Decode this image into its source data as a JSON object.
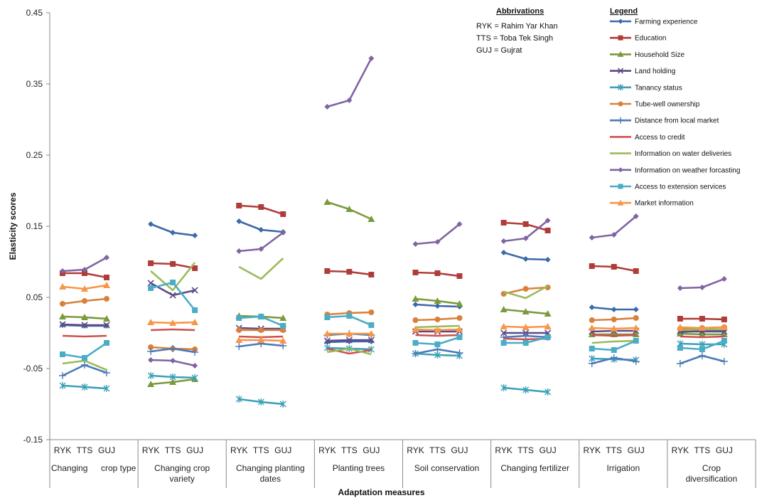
{
  "chart_data": {
    "type": "line",
    "xlabel": "Adaptation measures",
    "ylabel": "Elasticity scores",
    "ylim": [
      -0.15,
      0.45
    ],
    "yticks": [
      -0.15,
      -0.05,
      0.05,
      0.15,
      0.25,
      0.35,
      0.45
    ],
    "ytick_labels": [
      "-0.15",
      "-0.05",
      "0.05",
      "0.15",
      "0.25",
      "0.35",
      "0.45"
    ],
    "grid": false,
    "legend_placement": "top-right",
    "sub_categories": [
      "RYK",
      "TTS",
      "GUJ"
    ],
    "groups": [
      {
        "label_lines": [
          "Changing",
          "crop type"
        ]
      },
      {
        "label_lines": [
          "Changing crop",
          "variety"
        ]
      },
      {
        "label_lines": [
          "Changing planting",
          "dates"
        ]
      },
      {
        "label_lines": [
          "Planting trees"
        ]
      },
      {
        "label_lines": [
          "Soil conservation"
        ]
      },
      {
        "label_lines": [
          "Changing fertilizer"
        ]
      },
      {
        "label_lines": [
          "Irrigation"
        ]
      },
      {
        "label_lines": [
          "Crop",
          "diversification"
        ]
      }
    ],
    "abbreviations": {
      "title": "Abbrivations",
      "items": [
        "RYK = Rahim Yar Khan",
        "TTS = Toba Tek Singh",
        "GUJ = Gujrat"
      ]
    },
    "legend_title": "Legend",
    "series": [
      {
        "name": "Farming experience",
        "color": "#3C6AA8",
        "marker": "diamond",
        "values": [
          [
            0.011,
            0.01,
            0.01
          ],
          [
            0.153,
            0.141,
            0.137
          ],
          [
            0.157,
            0.145,
            0.142
          ],
          [
            -0.013,
            -0.012,
            -0.012
          ],
          [
            0.04,
            0.038,
            0.037
          ],
          [
            0.113,
            0.104,
            0.103
          ],
          [
            0.036,
            0.033,
            0.033
          ],
          [
            0.001,
            0.003,
            0.003
          ]
        ]
      },
      {
        "name": "Education",
        "color": "#B03C3A",
        "marker": "square",
        "values": [
          [
            0.084,
            0.084,
            0.078
          ],
          [
            0.098,
            0.097,
            0.091
          ],
          [
            0.179,
            0.177,
            0.167
          ],
          [
            0.087,
            0.086,
            0.082
          ],
          [
            0.085,
            0.084,
            0.08
          ],
          [
            0.155,
            0.153,
            0.144
          ],
          [
            0.094,
            0.093,
            0.087
          ],
          [
            0.02,
            0.02,
            0.019
          ]
        ]
      },
      {
        "name": "Household Size",
        "color": "#7A9A3C",
        "marker": "triangle",
        "values": [
          [
            0.023,
            0.022,
            0.02
          ],
          [
            -0.072,
            -0.069,
            -0.065
          ],
          [
            0.024,
            0.023,
            0.021
          ],
          [
            0.184,
            0.174,
            0.16
          ],
          [
            0.048,
            0.045,
            0.041
          ],
          [
            0.033,
            0.03,
            0.027
          ],
          [
            -0.002,
            -0.002,
            -0.002
          ],
          [
            -0.001,
            -0.002,
            -0.002
          ]
        ]
      },
      {
        "name": "Land holding",
        "color": "#5E4A86",
        "marker": "x",
        "values": [
          [
            0.012,
            0.011,
            0.011
          ],
          [
            0.07,
            0.053,
            0.06
          ],
          [
            0.007,
            0.006,
            0.006
          ],
          [
            -0.011,
            -0.01,
            -0.01
          ],
          [
            0.002,
            0.002,
            0.002
          ],
          [
            0.0,
            0.0,
            0.0
          ],
          [
            0.002,
            0.003,
            0.003
          ],
          [
            0.002,
            0.002,
            0.002
          ]
        ]
      },
      {
        "name": "Tanancy status",
        "color": "#3BA0B8",
        "marker": "star",
        "values": [
          [
            -0.074,
            -0.076,
            -0.078
          ],
          [
            -0.06,
            -0.062,
            -0.063
          ],
          [
            -0.093,
            -0.097,
            -0.1
          ],
          [
            -0.021,
            -0.022,
            -0.023
          ],
          [
            -0.029,
            -0.031,
            -0.032
          ],
          [
            -0.077,
            -0.08,
            -0.083
          ],
          [
            -0.036,
            -0.037,
            -0.038
          ],
          [
            -0.015,
            -0.016,
            -0.016
          ]
        ]
      },
      {
        "name": "Tube-well ownership",
        "color": "#D9813A",
        "marker": "circle",
        "values": [
          [
            0.041,
            0.045,
            0.048
          ],
          [
            -0.02,
            -0.022,
            -0.023
          ],
          [
            0.004,
            0.004,
            0.004
          ],
          [
            0.026,
            0.028,
            0.029
          ],
          [
            0.018,
            0.019,
            0.021
          ],
          [
            0.055,
            0.062,
            0.064
          ],
          [
            0.018,
            0.019,
            0.021
          ],
          [
            0.006,
            0.007,
            0.008
          ]
        ]
      },
      {
        "name": "Distance from local market",
        "color": "#4A7BB8",
        "marker": "plus",
        "values": [
          [
            -0.06,
            -0.045,
            -0.056
          ],
          [
            -0.026,
            -0.022,
            -0.027
          ],
          [
            -0.019,
            -0.015,
            -0.018
          ],
          [
            -0.003,
            -0.001,
            -0.003
          ],
          [
            -0.029,
            -0.023,
            -0.028
          ],
          [
            -0.006,
            -0.004,
            -0.006
          ],
          [
            -0.043,
            -0.035,
            -0.04
          ],
          [
            -0.043,
            -0.032,
            -0.04
          ]
        ]
      },
      {
        "name": "Access to credit",
        "color": "#D0504F",
        "marker": "dash",
        "values": [
          [
            -0.004,
            -0.005,
            -0.004
          ],
          [
            0.004,
            0.005,
            0.004
          ],
          [
            -0.005,
            -0.006,
            -0.005
          ],
          [
            -0.022,
            -0.029,
            -0.024
          ],
          [
            -0.003,
            -0.004,
            -0.003
          ],
          [
            -0.008,
            -0.009,
            -0.008
          ],
          [
            -0.003,
            -0.004,
            -0.003
          ],
          [
            -0.005,
            -0.006,
            -0.005
          ]
        ]
      },
      {
        "name": "Information on water deliveries",
        "color": "#9BBB59",
        "marker": "dash",
        "values": [
          [
            -0.043,
            -0.039,
            -0.052
          ],
          [
            0.087,
            0.06,
            0.099
          ],
          [
            0.093,
            0.076,
            0.105
          ],
          [
            -0.027,
            -0.022,
            -0.03
          ],
          [
            0.008,
            0.009,
            0.01
          ],
          [
            0.058,
            0.049,
            0.066
          ],
          [
            -0.014,
            -0.012,
            -0.011
          ],
          [
            0.004,
            0.005,
            0.005
          ]
        ]
      },
      {
        "name": "Information on weather forcasting",
        "color": "#8064A2",
        "marker": "diamond",
        "values": [
          [
            0.087,
            0.089,
            0.106
          ],
          [
            -0.038,
            -0.039,
            -0.046
          ],
          [
            0.115,
            0.118,
            0.141
          ],
          [
            0.318,
            0.327,
            0.386
          ],
          [
            0.125,
            0.128,
            0.153
          ],
          [
            0.129,
            0.133,
            0.158
          ],
          [
            0.134,
            0.138,
            0.164
          ],
          [
            0.063,
            0.064,
            0.076
          ]
        ]
      },
      {
        "name": "Access to extension services",
        "color": "#4BACC6",
        "marker": "square",
        "values": [
          [
            -0.03,
            -0.035,
            -0.014
          ],
          [
            0.063,
            0.071,
            0.032
          ],
          [
            0.021,
            0.023,
            0.01
          ],
          [
            0.022,
            0.024,
            0.011
          ],
          [
            -0.014,
            -0.016,
            -0.006
          ],
          [
            -0.014,
            -0.014,
            -0.006
          ],
          [
            -0.022,
            -0.024,
            -0.011
          ],
          [
            -0.021,
            -0.023,
            -0.011
          ]
        ]
      },
      {
        "name": "Market information",
        "color": "#F79646",
        "marker": "triangle",
        "values": [
          [
            0.065,
            0.062,
            0.067
          ],
          [
            0.015,
            0.014,
            0.015
          ],
          [
            -0.01,
            -0.01,
            -0.011
          ],
          [
            -0.001,
            -0.001,
            -0.001
          ],
          [
            0.005,
            0.004,
            0.005
          ],
          [
            0.009,
            0.008,
            0.009
          ],
          [
            0.007,
            0.006,
            0.007
          ],
          [
            0.008,
            0.007,
            0.008
          ]
        ]
      }
    ]
  }
}
